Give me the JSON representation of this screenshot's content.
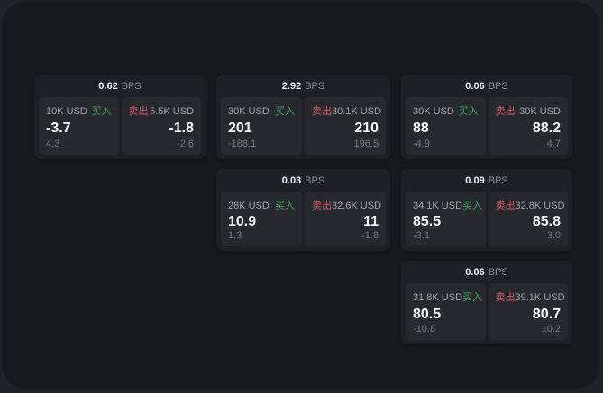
{
  "colors": {
    "buy": "#3fa765",
    "sell": "#d45d72",
    "page-outer": "#212225",
    "page-panel": "#18191b",
    "card-bg": "#1f2023",
    "tile-bg": "#28292c"
  },
  "cards": [
    {
      "bps": "0.62",
      "unit": "BPS",
      "grid": {
        "col": 1,
        "row": 1
      },
      "buy": {
        "amount": "10K USD",
        "side": "买入",
        "price": "-3.7",
        "delta": "4.3"
      },
      "sell": {
        "amount": "5.5K USD",
        "side": "卖出",
        "price": "-1.8",
        "delta": "-2.6"
      }
    },
    {
      "bps": "2.92",
      "unit": "BPS",
      "grid": {
        "col": 2,
        "row": 1
      },
      "buy": {
        "amount": "30K USD",
        "side": "买入",
        "price": "201",
        "delta": "-188.1"
      },
      "sell": {
        "amount": "30.1K USD",
        "side": "卖出",
        "price": "210",
        "delta": "196.5"
      }
    },
    {
      "bps": "0.06",
      "unit": "BPS",
      "grid": {
        "col": 3,
        "row": 1
      },
      "buy": {
        "amount": "30K USD",
        "side": "买入",
        "price": "88",
        "delta": "-4.9"
      },
      "sell": {
        "amount": "30K USD",
        "side": "卖出",
        "price": "88.2",
        "delta": "4.7"
      }
    },
    {
      "bps": "0.03",
      "unit": "BPS",
      "grid": {
        "col": 2,
        "row": 2
      },
      "buy": {
        "amount": "28K USD",
        "side": "买入",
        "price": "10.9",
        "delta": "1.3"
      },
      "sell": {
        "amount": "32.6K USD",
        "side": "卖出",
        "price": "11",
        "delta": "-1.8"
      }
    },
    {
      "bps": "0.09",
      "unit": "BPS",
      "grid": {
        "col": 3,
        "row": 2
      },
      "buy": {
        "amount": "34.1K USD",
        "side": "买入",
        "price": "85.5",
        "delta": "-3.1"
      },
      "sell": {
        "amount": "32.8K USD",
        "side": "卖出",
        "price": "85.8",
        "delta": "3.0"
      }
    },
    {
      "bps": "0.06",
      "unit": "BPS",
      "grid": {
        "col": 3,
        "row": 3
      },
      "buy": {
        "amount": "31.8K USD",
        "side": "买入",
        "price": "80.5",
        "delta": "-10.8"
      },
      "sell": {
        "amount": "39.1K USD",
        "side": "卖出",
        "price": "80.7",
        "delta": "10.2"
      }
    }
  ]
}
